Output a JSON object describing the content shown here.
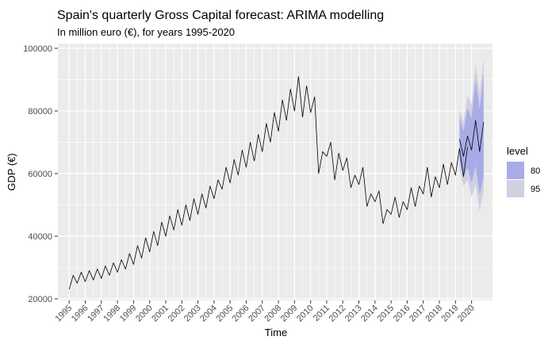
{
  "chart_data": {
    "type": "line",
    "title": "Spain's quarterly Gross Capital forecast: ARIMA modelling",
    "subtitle": "In million euro (€), for years 1995-2020",
    "xlabel": "Time",
    "ylabel": "GDP (€)",
    "xlim": [
      1994.3,
      2021.3
    ],
    "ylim": [
      19500,
      101500
    ],
    "y_ticks": [
      20000,
      40000,
      60000,
      80000,
      100000
    ],
    "x_tick_labels": [
      "1995",
      "1996",
      "1997",
      "1998",
      "1999",
      "2000",
      "2001",
      "2002",
      "2003",
      "2004",
      "2005",
      "2006",
      "2007",
      "2008",
      "2009",
      "2010",
      "2011",
      "2012",
      "2013",
      "2014",
      "2015",
      "2016",
      "2017",
      "2018",
      "2019",
      "2020"
    ],
    "grid": true,
    "legend_placement": "right",
    "legend": {
      "title": "level",
      "entries": [
        "80",
        "95"
      ]
    },
    "colors": {
      "line": "#000000",
      "band80": "#a8ace6",
      "band95": "#d0d0e2",
      "panel": "#ebebeb",
      "grid_major": "#ffffff"
    },
    "series": [
      {
        "x_start": 1995.0,
        "step": 0.25,
        "values": [
          23000,
          27500,
          25000,
          28500,
          25500,
          29000,
          26000,
          29500,
          26500,
          30500,
          27500,
          31500,
          28500,
          32500,
          29500,
          34500,
          31000,
          37000,
          33000,
          39500,
          35000,
          41500,
          37000,
          44500,
          40000,
          46500,
          42000,
          48500,
          43500,
          50000,
          45000,
          52000,
          47000,
          53500,
          49000,
          56000,
          52000,
          58000,
          55000,
          62000,
          57000,
          64500,
          59500,
          67500,
          62000,
          70000,
          64000,
          72500,
          67000,
          76000,
          70000,
          79500,
          73500,
          83500,
          77000,
          87000,
          80000,
          91000,
          78000,
          88000,
          79500,
          84500,
          60000,
          67000,
          65500,
          70000,
          58000,
          66500,
          61000,
          65000,
          55500,
          59500,
          56500,
          62000,
          49500,
          53500,
          51000,
          54500,
          44000,
          48500,
          47000,
          52500,
          46000,
          51000,
          48500,
          55500,
          49500,
          56000,
          53500,
          62000,
          52500,
          59000,
          55500,
          63000,
          56500,
          63500,
          59500,
          68000,
          59000,
          68500
        ],
        "name": ""
      }
    ],
    "forecast": {
      "x_start": 2019.25,
      "step": 0.25,
      "mean": [
        71000,
        65500,
        72000,
        67500,
        77000,
        67000,
        76500
      ],
      "lo80": [
        64000,
        59000,
        62000,
        57000,
        62500,
        53000,
        59000
      ],
      "hi80": [
        78000,
        73500,
        81000,
        77500,
        90000,
        80500,
        92000
      ],
      "lo95": [
        61500,
        56000,
        58000,
        52500,
        56500,
        48000,
        54500
      ],
      "hi95": [
        80500,
        76500,
        85000,
        82000,
        95000,
        86000,
        97000
      ]
    }
  }
}
